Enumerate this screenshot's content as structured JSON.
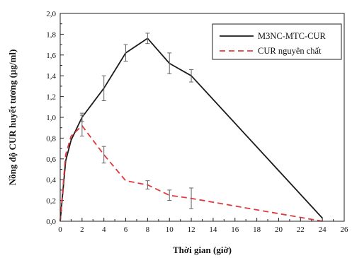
{
  "chart_data": {
    "type": "line",
    "xlabel": "Thời gian (giờ)",
    "ylabel": "Nồng độ CUR huyết tương (µg/ml)",
    "xlim": [
      0,
      26
    ],
    "ylim": [
      0,
      2.0
    ],
    "x_ticks": [
      "0",
      "2",
      "4",
      "6",
      "8",
      "10",
      "12",
      "14",
      "16",
      "18",
      "20",
      "22",
      "24",
      "26"
    ],
    "y_ticks": [
      "0,0",
      "0,2",
      "0,4",
      "0,6",
      "0,8",
      "1,0",
      "1,2",
      "1,4",
      "1,6",
      "1,8",
      "2,0"
    ],
    "grid": false,
    "legend_position": "top-right",
    "series": [
      {
        "name": "M3NC-MTC-CUR",
        "color": "#1a1a1a",
        "dash": "solid",
        "x": [
          0,
          0.5,
          1,
          2,
          4,
          6,
          8,
          10,
          12,
          24
        ],
        "y": [
          0.0,
          0.58,
          0.78,
          1.0,
          1.28,
          1.62,
          1.76,
          1.52,
          1.4,
          0.03
        ],
        "error": [
          0,
          0,
          0,
          0.04,
          0.12,
          0.08,
          0.05,
          0.1,
          0.06,
          0
        ]
      },
      {
        "name": "CUR nguyên chất",
        "color": "#e0393e",
        "dash": "dashed",
        "x": [
          0,
          0.5,
          1,
          2,
          4,
          6,
          8,
          10,
          12,
          24
        ],
        "y": [
          0.0,
          0.64,
          0.82,
          0.92,
          0.64,
          0.39,
          0.35,
          0.25,
          0.22,
          0.0
        ],
        "error": [
          0,
          0,
          0,
          0.1,
          0.08,
          0,
          0.04,
          0.05,
          0.1,
          0
        ]
      }
    ]
  }
}
